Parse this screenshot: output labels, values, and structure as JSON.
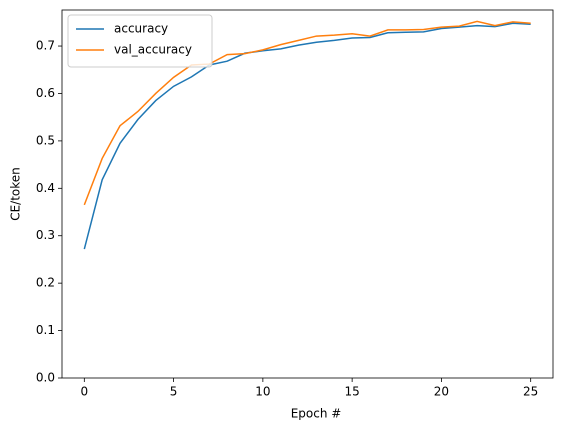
{
  "chart_data": {
    "type": "line",
    "x_label": "Epoch #",
    "y_label": "CE/token",
    "x": [
      0,
      1,
      2,
      3,
      4,
      5,
      6,
      7,
      8,
      9,
      10,
      11,
      12,
      13,
      14,
      15,
      16,
      17,
      18,
      19,
      20,
      21,
      22,
      23,
      24,
      25
    ],
    "series": [
      {
        "name": "accuracy",
        "color": "#1f77b4",
        "values": [
          0.272,
          0.418,
          0.495,
          0.545,
          0.585,
          0.615,
          0.635,
          0.66,
          0.668,
          0.685,
          0.69,
          0.694,
          0.702,
          0.708,
          0.712,
          0.717,
          0.718,
          0.728,
          0.729,
          0.73,
          0.737,
          0.74,
          0.743,
          0.741,
          0.748,
          0.746
        ]
      },
      {
        "name": "val_accuracy",
        "color": "#ff7f0e",
        "values": [
          0.365,
          0.463,
          0.532,
          0.562,
          0.6,
          0.634,
          0.66,
          0.662,
          0.682,
          0.684,
          0.692,
          0.703,
          0.712,
          0.721,
          0.723,
          0.726,
          0.721,
          0.734,
          0.734,
          0.735,
          0.74,
          0.742,
          0.752,
          0.743,
          0.751,
          0.748
        ]
      }
    ],
    "xlim": [
      -1.25,
      26.25
    ],
    "xticks": [
      0,
      5,
      10,
      15,
      20,
      25
    ],
    "ylim": [
      0,
      0.776
    ],
    "yticks": [
      {
        "value": 0,
        "label": "0.0"
      },
      0.1,
      0.2,
      0.3,
      0.4,
      0.5,
      0.6,
      0.7
    ],
    "legend": "upper left",
    "grid": false
  }
}
